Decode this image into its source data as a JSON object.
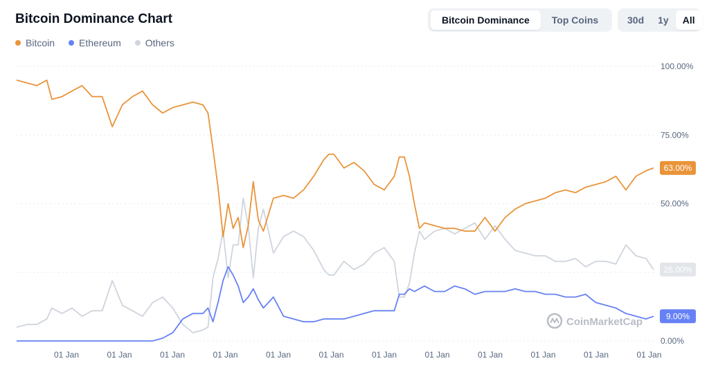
{
  "header": {
    "title": "Bitcoin Dominance Chart",
    "view_tabs": [
      {
        "label": "Bitcoin Dominance",
        "active": true
      },
      {
        "label": "Top Coins",
        "active": false
      }
    ],
    "range_tabs": [
      {
        "label": "30d",
        "active": false
      },
      {
        "label": "1y",
        "active": false
      },
      {
        "label": "All",
        "active": true
      }
    ]
  },
  "watermark": "CoinMarketCap",
  "colors": {
    "bitcoin": "#e9943a",
    "ethereum": "#6681f5",
    "others": "#cfd4dd",
    "grid": "#e6e9ef"
  },
  "chart_data": {
    "type": "line",
    "ylim": [
      0,
      100
    ],
    "y_ticks": [
      "100.00%",
      "75.00%",
      "50.00%",
      "25.00%",
      "0.00%"
    ],
    "x_ticks": [
      "01 Jan",
      "01 Jan",
      "01 Jan",
      "01 Jan",
      "01 Jan",
      "01 Jan",
      "01 Jan",
      "01 Jan",
      "01 Jan",
      "01 Jan",
      "01 Jan",
      "01 Jan"
    ],
    "legend": [
      "Bitcoin",
      "Ethereum",
      "Others"
    ],
    "current_values": {
      "bitcoin": "63.00%",
      "ethereum": "9.00%",
      "others": "26.00%"
    },
    "x": [
      2013.3,
      2013.5,
      2013.7,
      2013.9,
      2014.0,
      2014.2,
      2014.4,
      2014.6,
      2014.8,
      2015.0,
      2015.2,
      2015.4,
      2015.6,
      2015.8,
      2016.0,
      2016.2,
      2016.4,
      2016.6,
      2016.8,
      2017.0,
      2017.1,
      2017.2,
      2017.3,
      2017.4,
      2017.5,
      2017.6,
      2017.7,
      2017.8,
      2017.9,
      2018.0,
      2018.1,
      2018.2,
      2018.4,
      2018.6,
      2018.8,
      2019.0,
      2019.2,
      2019.4,
      2019.5,
      2019.6,
      2019.8,
      2020.0,
      2020.2,
      2020.4,
      2020.6,
      2020.8,
      2020.9,
      2021.0,
      2021.1,
      2021.2,
      2021.3,
      2021.4,
      2021.6,
      2021.8,
      2022.0,
      2022.2,
      2022.4,
      2022.6,
      2022.8,
      2023.0,
      2023.2,
      2023.4,
      2023.6,
      2023.8,
      2024.0,
      2024.2,
      2024.4,
      2024.6,
      2024.8,
      2025.0,
      2025.2,
      2025.4,
      2025.6,
      2025.8,
      2025.95
    ],
    "series": [
      {
        "name": "Bitcoin",
        "values": [
          95,
          94,
          93,
          95,
          88,
          89,
          91,
          93,
          89,
          89,
          78,
          86,
          89,
          91,
          86,
          83,
          85,
          86,
          87,
          86,
          83,
          70,
          56,
          38,
          50,
          41,
          45,
          34,
          42,
          58,
          44,
          40,
          52,
          53,
          52,
          55,
          60,
          66,
          68,
          68,
          63,
          65,
          62,
          57,
          55,
          60,
          67,
          67,
          60,
          50,
          41,
          43,
          42,
          41,
          41,
          40,
          40,
          45,
          40,
          45,
          48,
          50,
          51,
          52,
          54,
          55,
          54,
          56,
          57,
          58,
          60,
          55,
          60,
          62,
          63
        ]
      },
      {
        "name": "Ethereum",
        "values": [
          0,
          0,
          0,
          0,
          0,
          0,
          0,
          0,
          0,
          0,
          0,
          0,
          0,
          0,
          0,
          1,
          3,
          8,
          10,
          10,
          12,
          7,
          14,
          22,
          27,
          24,
          20,
          14,
          16,
          19,
          15,
          12,
          16,
          9,
          8,
          7,
          7,
          8,
          8,
          8,
          8,
          9,
          10,
          11,
          11,
          11,
          17,
          17,
          19,
          18,
          19,
          20,
          18,
          18,
          20,
          19,
          17,
          18,
          18,
          18,
          19,
          18,
          18,
          17,
          17,
          16,
          16,
          17,
          14,
          13,
          12,
          10,
          9,
          8,
          9
        ]
      },
      {
        "name": "Others",
        "values": [
          5,
          6,
          6,
          8,
          12,
          10,
          12,
          9,
          11,
          11,
          22,
          13,
          11,
          9,
          14,
          16,
          12,
          6,
          3,
          4,
          5,
          23,
          30,
          40,
          23,
          35,
          35,
          52,
          42,
          23,
          41,
          48,
          32,
          38,
          40,
          38,
          33,
          26,
          24,
          24,
          29,
          26,
          28,
          32,
          34,
          29,
          16,
          16,
          21,
          32,
          40,
          37,
          40,
          41,
          39,
          41,
          43,
          37,
          42,
          37,
          33,
          32,
          31,
          31,
          29,
          29,
          30,
          27,
          29,
          29,
          28,
          35,
          31,
          30,
          26
        ]
      }
    ]
  }
}
